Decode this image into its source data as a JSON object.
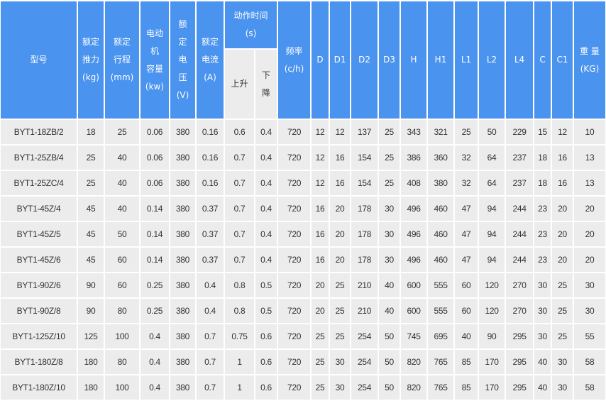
{
  "headers": {
    "model": "型号",
    "thrust": "额定\n推力\n(kg)",
    "stroke": "额定\n行程\n(mm)",
    "motor": "电动\n机\n容量\n(kw)",
    "voltage": "额\n定\n电\n压\n(V)",
    "current": "额定\n电流\n(A)",
    "action_time": "动作时间\n(s)",
    "rise": "上升",
    "fall": "下\n降",
    "freq": "频率\n(c/h)",
    "D": "D",
    "D1": "D1",
    "D2": "D2",
    "D3": "D3",
    "H": "H",
    "H1": "H1",
    "L1": "L1",
    "L2": "L2",
    "L4": "L4",
    "C": "C",
    "C1": "C1",
    "weight": "重 量\n(KG)"
  },
  "rows": [
    [
      "BYT1-18ZB/2",
      "18",
      "25",
      "0.06",
      "380",
      "0.16",
      "0.6",
      "0.4",
      "720",
      "12",
      "12",
      "137",
      "25",
      "343",
      "321",
      "25",
      "50",
      "229",
      "15",
      "12",
      "10"
    ],
    [
      "BYT1-25ZB/4",
      "25",
      "40",
      "0.06",
      "380",
      "0.16",
      "0.7",
      "0.4",
      "720",
      "12",
      "16",
      "154",
      "25",
      "386",
      "360",
      "32",
      "64",
      "237",
      "18",
      "16",
      "13"
    ],
    [
      "BYT1-25ZC/4",
      "25",
      "40",
      "0.06",
      "380",
      "0.16",
      "0.7",
      "0.4",
      "720",
      "12",
      "16",
      "154",
      "25",
      "408",
      "380",
      "32",
      "64",
      "237",
      "18",
      "16",
      "13"
    ],
    [
      "BYT1-45Z/4",
      "45",
      "40",
      "0.14",
      "380",
      "0.37",
      "0.7",
      "0.4",
      "720",
      "16",
      "20",
      "178",
      "30",
      "496",
      "460",
      "47",
      "94",
      "244",
      "23",
      "20",
      "20"
    ],
    [
      "BYT1-45Z/5",
      "45",
      "50",
      "0.14",
      "380",
      "0.37",
      "0.7",
      "0.4",
      "720",
      "16",
      "20",
      "178",
      "30",
      "496",
      "460",
      "47",
      "94",
      "244",
      "23",
      "20",
      "20"
    ],
    [
      "BYT1-45Z/6",
      "45",
      "60",
      "0.14",
      "380",
      "0.37",
      "0.7",
      "0.4",
      "720",
      "16",
      "20",
      "178",
      "30",
      "496",
      "460",
      "47",
      "94",
      "244",
      "23",
      "20",
      "20"
    ],
    [
      "BYT1-90Z/6",
      "90",
      "60",
      "0.25",
      "380",
      "0.4",
      "0.8",
      "0.5",
      "720",
      "20",
      "25",
      "210",
      "40",
      "600",
      "555",
      "60",
      "120",
      "270",
      "30",
      "25",
      "30"
    ],
    [
      "BYT1-90Z/8",
      "90",
      "80",
      "0.25",
      "380",
      "0.4",
      "0.8",
      "0.5",
      "720",
      "20",
      "25",
      "210",
      "40",
      "600",
      "555",
      "60",
      "120",
      "270",
      "30",
      "25",
      "30"
    ],
    [
      "BYT1-125Z/10",
      "125",
      "100",
      "0.4",
      "380",
      "0.7",
      "0.75",
      "0.6",
      "720",
      "25",
      "25",
      "254",
      "50",
      "745",
      "695",
      "40",
      "90",
      "295",
      "30",
      "25",
      "55"
    ],
    [
      "BYT1-180Z/8",
      "180",
      "80",
      "0.4",
      "380",
      "0.7",
      "1",
      "0.6",
      "720",
      "25",
      "30",
      "254",
      "50",
      "820",
      "765",
      "85",
      "170",
      "295",
      "40",
      "30",
      "58"
    ],
    [
      "BYT1-180Z/10",
      "180",
      "100",
      "0.4",
      "380",
      "0.7",
      "1",
      "0.6",
      "720",
      "25",
      "30",
      "254",
      "50",
      "820",
      "765",
      "85",
      "170",
      "295",
      "40",
      "30",
      "58"
    ]
  ]
}
